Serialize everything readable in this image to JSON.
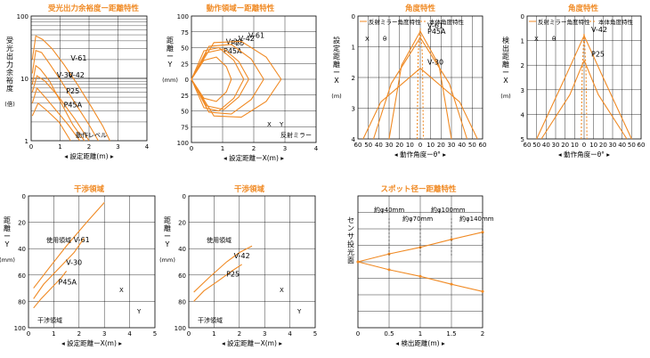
{
  "colors": {
    "accent": "#f08a24",
    "grid": "#000000",
    "text": "#000000"
  },
  "chart_data": [
    {
      "id": "c1",
      "type": "line",
      "title": "受光出力余裕度ー距離特性",
      "ylabel": "受光出力余裕度",
      "yunit": "(倍)",
      "ylog": true,
      "xlim": [
        0,
        5
      ],
      "ylim": [
        1,
        100
      ],
      "xticks": [
        "0",
        "1",
        "2",
        "3",
        "4"
      ],
      "ytick_labels": [
        "1",
        "10",
        "100"
      ],
      "xlabel": "設定距離",
      "xunit": "(m)",
      "series": [
        {
          "name": "V-61",
          "x": [
            0.05,
            0.2,
            0.5,
            0.9,
            1.4,
            2.0,
            2.6,
            3.1,
            3.4
          ],
          "y": [
            20,
            48,
            42,
            30,
            17,
            8,
            3.5,
            1.7,
            1.0
          ]
        },
        {
          "name": "V-42",
          "x": [
            0.05,
            0.2,
            0.45,
            0.8,
            1.3,
            1.9,
            2.5,
            2.9
          ],
          "y": [
            12,
            28,
            26,
            17,
            9,
            4,
            1.8,
            1.0
          ]
        },
        {
          "name": "V-30",
          "x": [
            0.05,
            0.2,
            0.4,
            0.8,
            1.3,
            1.8,
            2.3
          ],
          "y": [
            8,
            16,
            14,
            9,
            4,
            1.8,
            1.0
          ]
        },
        {
          "name": "P25",
          "x": [
            0.05,
            0.25,
            0.6,
            1.2,
            1.9,
            2.5
          ],
          "y": [
            6,
            11,
            9,
            5,
            2.2,
            1.0
          ]
        },
        {
          "name": "P45A",
          "x": [
            0.05,
            0.25,
            0.6,
            1.1,
            1.6,
            2.1
          ],
          "y": [
            4,
            7,
            5,
            3,
            1.8,
            1.0
          ]
        },
        {
          "name": "",
          "x": [
            0.05,
            0.3,
            0.7,
            1.2,
            1.7
          ],
          "y": [
            2.5,
            4,
            3,
            2,
            1.0
          ]
        }
      ],
      "annotations": [
        "動作レベル"
      ]
    },
    {
      "id": "c2",
      "type": "line",
      "title": "動作領域ー距離特性",
      "xlim": [
        0,
        5
      ],
      "ylim": [
        -100,
        100
      ],
      "xticks": [
        "0",
        "1",
        "2",
        "3",
        "4"
      ],
      "ytick_labels": [
        "100",
        "75",
        "50",
        "25",
        "0",
        "25",
        "50",
        "75",
        "100"
      ],
      "xlabel": "設定距離ーX",
      "xunit": "(m)",
      "ylabel": "距離ーY",
      "yunit": "(mm)",
      "series": [
        {
          "name": "P45A",
          "x": [
            0,
            0.5,
            1.0,
            1.4,
            1.6
          ],
          "y": [
            0,
            30,
            35,
            20,
            0
          ]
        },
        {
          "name": "P25",
          "x": [
            0,
            0.6,
            1.3,
            1.9,
            2.3
          ],
          "y": [
            0,
            42,
            48,
            28,
            0
          ]
        },
        {
          "name": "V-42",
          "x": [
            0,
            0.7,
            1.6,
            2.4,
            2.9
          ],
          "y": [
            0,
            52,
            55,
            32,
            0
          ]
        },
        {
          "name": "V-30",
          "x": [
            0,
            0.5,
            1.1,
            1.7,
            2.1
          ],
          "y": [
            0,
            45,
            50,
            30,
            0
          ]
        },
        {
          "name": "V-61",
          "x": [
            0,
            0.9,
            2.0,
            3.0,
            3.6
          ],
          "y": [
            0,
            58,
            60,
            35,
            0
          ]
        }
      ],
      "annotations": [
        "X",
        "Y",
        "反射ミラー"
      ]
    },
    {
      "id": "c3",
      "type": "line",
      "title": "角度特性",
      "xlim": [
        -60,
        60
      ],
      "ylim": [
        0,
        4
      ],
      "xticks": [
        "60",
        "50",
        "40",
        "30",
        "20",
        "10",
        "0",
        "10",
        "20",
        "30",
        "40",
        "50",
        "60"
      ],
      "ytick_labels": [
        "0",
        "1",
        "2",
        "3",
        "4"
      ],
      "xlabel": "動作角度ーθ",
      "xunit": "°",
      "ylabel": "設定距離ーX",
      "yunit": "(m)",
      "legend": [
        {
          "label": "反射ミラー角度特性",
          "style": "solid"
        },
        {
          "label": "本体角度特性",
          "style": "dashed"
        }
      ],
      "series": [
        {
          "name": "V-61",
          "x": [
            -30,
            -18,
            0,
            18,
            30
          ],
          "y": [
            0,
            2.4,
            3.5,
            2.4,
            0
          ]
        },
        {
          "name": "P45A",
          "x": [
            -45,
            -28,
            0,
            28,
            45
          ],
          "y": [
            0,
            1.8,
            3.3,
            1.8,
            0
          ]
        },
        {
          "name": "V-30",
          "x": [
            -55,
            -38,
            0,
            38,
            55
          ],
          "y": [
            0,
            1.2,
            2.3,
            1.2,
            0
          ]
        },
        {
          "name": "",
          "x": [
            -3,
            -2,
            0,
            2,
            3
          ],
          "y": [
            0,
            2.8,
            3.6,
            2.8,
            0
          ],
          "dashed": true
        }
      ],
      "annotations": [
        "X",
        "θ"
      ]
    },
    {
      "id": "c4",
      "type": "line",
      "title": "角度特性",
      "xlim": [
        -60,
        60
      ],
      "ylim": [
        0,
        5
      ],
      "xticks": [
        "60",
        "50",
        "40",
        "30",
        "20",
        "10",
        "0",
        "10",
        "20",
        "30",
        "40",
        "50",
        "60"
      ],
      "ytick_labels": [
        "0",
        "1",
        "2",
        "3",
        "4",
        "5"
      ],
      "xlabel": "動作角度ーθ",
      "xunit": "°",
      "ylabel": "検出距離ーX",
      "yunit": "(m)",
      "legend": [
        {
          "label": "反射ミラー角度特性",
          "style": "solid"
        },
        {
          "label": "本体角度特性",
          "style": "dashed"
        }
      ],
      "series": [
        {
          "name": "V-42",
          "x": [
            -50,
            -20,
            0,
            20,
            50
          ],
          "y": [
            0,
            2.5,
            4.2,
            2.5,
            0
          ]
        },
        {
          "name": "P25",
          "x": [
            -45,
            -15,
            0,
            15,
            45
          ],
          "y": [
            0,
            1.8,
            3.2,
            1.8,
            0
          ]
        },
        {
          "name": "",
          "x": [
            -3,
            -2,
            0,
            2,
            3
          ],
          "y": [
            0,
            2.8,
            4.3,
            2.8,
            0
          ],
          "dashed": true
        }
      ],
      "annotations": [
        "X",
        "θ"
      ]
    },
    {
      "id": "c5",
      "type": "area",
      "title": "干渉領域",
      "xlim": [
        0,
        5
      ],
      "ylim": [
        0,
        100
      ],
      "xticks": [
        "0",
        "1",
        "2",
        "3",
        "4",
        "5"
      ],
      "ytick_labels": [
        "0",
        "20",
        "40",
        "60",
        "80",
        "100"
      ],
      "xlabel": "設定距離ーX",
      "xunit": "(m)",
      "ylabel": "距離ーY",
      "yunit": "(mm)",
      "series": [
        {
          "name": "V-61",
          "x": [
            0.2,
            0.8,
            1.5,
            2.3,
            3.0
          ],
          "y": [
            30,
            45,
            62,
            80,
            95
          ]
        },
        {
          "name": "V-30",
          "x": [
            0.2,
            0.6,
            1.2,
            1.8,
            2.2
          ],
          "y": [
            22,
            33,
            45,
            57,
            68
          ]
        },
        {
          "name": "P45A",
          "x": [
            0.2,
            0.5,
            0.9,
            1.3,
            1.5
          ],
          "y": [
            15,
            22,
            30,
            38,
            43
          ]
        }
      ],
      "annotations": [
        "使用領域",
        "干渉領域",
        "X",
        "Y"
      ]
    },
    {
      "id": "c6",
      "type": "area",
      "title": "干渉領域",
      "xlim": [
        0,
        5
      ],
      "ylim": [
        0,
        100
      ],
      "xticks": [
        "0",
        "1",
        "2",
        "3",
        "4",
        "5"
      ],
      "ytick_labels": [
        "0",
        "20",
        "40",
        "60",
        "80",
        "100"
      ],
      "xlabel": "設定距離ーX",
      "xunit": "(m)",
      "ylabel": "距離ーY",
      "yunit": "(mm)",
      "series": [
        {
          "name": "V-42",
          "x": [
            0.2,
            0.8,
            1.5,
            2.0,
            2.5
          ],
          "y": [
            27,
            38,
            50,
            57,
            62
          ]
        },
        {
          "name": "P25",
          "x": [
            0.2,
            0.6,
            1.2,
            1.7,
            2.1
          ],
          "y": [
            20,
            28,
            36,
            43,
            48
          ]
        }
      ],
      "annotations": [
        "使用領域",
        "干渉領域",
        "X",
        "Y"
      ]
    },
    {
      "id": "c7",
      "type": "line",
      "title": "スポット径ー距離特性",
      "xlim": [
        0,
        2
      ],
      "ylim": [
        -1,
        1
      ],
      "xticks": [
        "0",
        "0.5",
        "1",
        "1.5",
        "2"
      ],
      "xlabel": "検出距離",
      "xunit": "(m)",
      "ylabel": "センサ投光面",
      "series": [
        {
          "name": "",
          "x": [
            0,
            0.5,
            1,
            1.5,
            2
          ],
          "y": [
            0,
            0.12,
            0.22,
            0.34,
            0.45
          ]
        },
        {
          "name": "",
          "x": [
            0,
            0.5,
            1,
            1.5,
            2
          ],
          "y": [
            0,
            -0.12,
            -0.22,
            -0.34,
            -0.45
          ]
        }
      ],
      "annotations": [
        "約φ40mm",
        "約φ70mm",
        "約φ100mm",
        "約φ140mm"
      ]
    }
  ]
}
